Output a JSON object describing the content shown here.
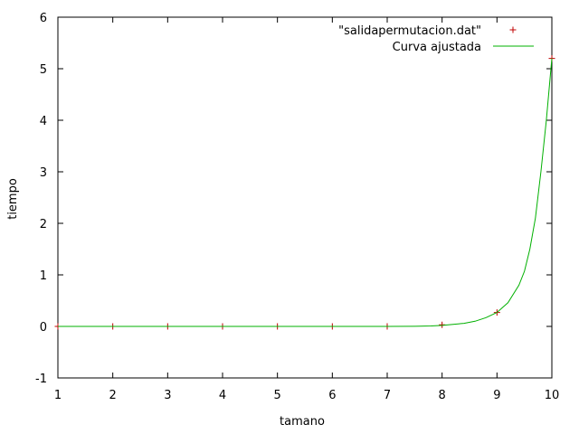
{
  "chart_data": {
    "type": "scatter",
    "xlabel": "tamano",
    "ylabel": "tiempo",
    "xlim": [
      1,
      10
    ],
    "ylim": [
      -1,
      6
    ],
    "x_ticks": [
      1,
      2,
      3,
      4,
      5,
      6,
      7,
      8,
      9,
      10
    ],
    "y_ticks": [
      -1,
      0,
      1,
      2,
      3,
      4,
      5,
      6
    ],
    "grid": false,
    "legend_position": "top-right",
    "series": [
      {
        "name": "\"salidapermutacion.dat\"",
        "style": "points",
        "marker": "plus",
        "color": "#c00000",
        "x": [
          1,
          2,
          3,
          4,
          5,
          6,
          7,
          8,
          9,
          10
        ],
        "y": [
          0,
          0,
          0,
          0,
          0,
          0,
          0,
          0.03,
          0.27,
          5.2
        ]
      },
      {
        "name": "Curva ajustada",
        "style": "line",
        "color": "#00b000",
        "x": [
          1,
          5,
          7,
          7.5,
          7.8,
          8,
          8.2,
          8.4,
          8.6,
          8.8,
          9,
          9.2,
          9.4,
          9.5,
          9.6,
          9.7,
          9.8,
          9.9,
          10
        ],
        "y": [
          0,
          0,
          0,
          0.002,
          0.008,
          0.02,
          0.04,
          0.06,
          0.1,
          0.17,
          0.27,
          0.46,
          0.8,
          1.07,
          1.5,
          2.1,
          3.0,
          4.0,
          5.2
        ]
      }
    ]
  }
}
